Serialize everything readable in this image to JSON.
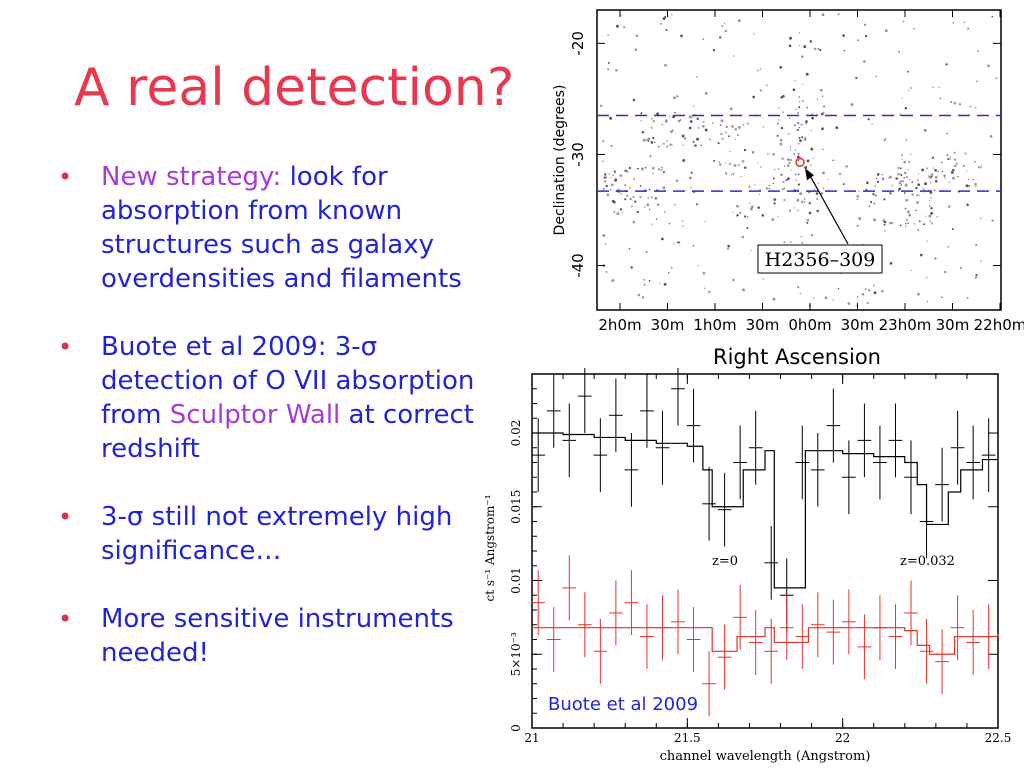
{
  "slide": {
    "title": "A real detection?",
    "bullets": [
      {
        "parts": [
          {
            "text": "New strategy: ",
            "highlight": true
          },
          {
            "text": "look for absorption from known structures such as galaxy overdensities and filaments",
            "highlight": false
          }
        ]
      },
      {
        "parts": [
          {
            "text": "Buote et al 2009: 3-σ detection of O VII absorption from ",
            "highlight": false
          },
          {
            "text": "Sculptor Wall",
            "highlight": true
          },
          {
            "text": " at correct redshift",
            "highlight": false
          }
        ]
      },
      {
        "parts": [
          {
            "text": "3-σ still not extremely high significance…",
            "highlight": false
          }
        ]
      },
      {
        "parts": [
          {
            "text": "More sensitive instruments needed!",
            "highlight": false
          }
        ]
      }
    ],
    "colors": {
      "title": "#e8384f",
      "text": "#2323d6",
      "highlight": "#a63bd6",
      "bullet": "#d5354a"
    }
  },
  "chart_data": [
    {
      "type": "scatter",
      "description": "galaxy sky map",
      "xlabel": "Right Ascension",
      "ylabel": "Declination (degrees)",
      "xticks": [
        "2h0m",
        "30m",
        "1h0m",
        "30m",
        "0h0m",
        "30m",
        "23h0m",
        "30m",
        "22h0m"
      ],
      "yticks": [
        -20,
        -30,
        -40
      ],
      "ylim": [
        -44,
        -17
      ],
      "band_dec": [
        -26.5,
        -33.3
      ],
      "annotation": "H2356–309",
      "target": {
        "ra_hours": 23.98,
        "dec": -30.7
      }
    },
    {
      "type": "line",
      "xlabel": "channel wavelength (Angstrom)",
      "ylabel": "ct s⁻¹ Angstrom⁻¹",
      "xlim": [
        21.0,
        22.5
      ],
      "ylim": [
        0,
        0.024
      ],
      "xticks": [
        21,
        21.5,
        22,
        22.5
      ],
      "yticks": [
        {
          "value": 0,
          "label": "0"
        },
        {
          "value": 0.005,
          "label": "5×10⁻³"
        },
        {
          "value": 0.01,
          "label": "0.01"
        },
        {
          "value": 0.015,
          "label": "0.015"
        },
        {
          "value": 0.02,
          "label": "0.02"
        }
      ],
      "annotations": [
        {
          "text": "z=0",
          "x": 21.6,
          "y": 0.0104
        },
        {
          "text": "z=0.032",
          "x": 22.18,
          "y": 0.0104
        },
        {
          "text": "Buote et al 2009"
        }
      ],
      "series": [
        {
          "color": "#000000",
          "model": [
            [
              21.0,
              0.02
            ],
            [
              21.1,
              0.0199
            ],
            [
              21.2,
              0.0197
            ],
            [
              21.3,
              0.0195
            ],
            [
              21.4,
              0.0193
            ],
            [
              21.5,
              0.0191
            ],
            [
              21.55,
              0.0175
            ],
            [
              21.58,
              0.015
            ],
            [
              21.65,
              0.015
            ],
            [
              21.68,
              0.0175
            ],
            [
              21.75,
              0.0188
            ],
            [
              21.78,
              0.0095
            ],
            [
              21.85,
              0.0095
            ],
            [
              21.88,
              0.0188
            ],
            [
              22.0,
              0.0186
            ],
            [
              22.1,
              0.0184
            ],
            [
              22.2,
              0.018
            ],
            [
              22.24,
              0.0165
            ],
            [
              22.27,
              0.0138
            ],
            [
              22.32,
              0.0138
            ],
            [
              22.34,
              0.016
            ],
            [
              22.38,
              0.0175
            ],
            [
              22.45,
              0.0182
            ],
            [
              22.5,
              0.0182
            ]
          ],
          "points": [
            [
              21.02,
              0.0185
            ],
            [
              21.07,
              0.0215
            ],
            [
              21.12,
              0.0195
            ],
            [
              21.17,
              0.0225
            ],
            [
              21.22,
              0.0185
            ],
            [
              21.27,
              0.0212
            ],
            [
              21.32,
              0.0175
            ],
            [
              21.37,
              0.0215
            ],
            [
              21.42,
              0.019
            ],
            [
              21.47,
              0.023
            ],
            [
              21.52,
              0.0205
            ],
            [
              21.57,
              0.0152
            ],
            [
              21.62,
              0.0148
            ],
            [
              21.67,
              0.018
            ],
            [
              21.72,
              0.019
            ],
            [
              21.77,
              0.0112
            ],
            [
              21.82,
              0.009
            ],
            [
              21.87,
              0.018
            ],
            [
              21.92,
              0.0175
            ],
            [
              21.97,
              0.0205
            ],
            [
              22.02,
              0.017
            ],
            [
              22.07,
              0.0195
            ],
            [
              22.12,
              0.018
            ],
            [
              22.17,
              0.0195
            ],
            [
              22.22,
              0.017
            ],
            [
              22.27,
              0.014
            ],
            [
              22.32,
              0.0165
            ],
            [
              22.37,
              0.019
            ],
            [
              22.42,
              0.018
            ],
            [
              22.47,
              0.0185
            ]
          ],
          "err": 0.0025
        },
        {
          "color": "#e8322c",
          "model": [
            [
              21.0,
              0.0068
            ],
            [
              21.2,
              0.0068
            ],
            [
              21.4,
              0.0068
            ],
            [
              21.55,
              0.0068
            ],
            [
              21.58,
              0.0052
            ],
            [
              21.63,
              0.0052
            ],
            [
              21.66,
              0.0062
            ],
            [
              21.75,
              0.0068
            ],
            [
              21.78,
              0.0058
            ],
            [
              21.86,
              0.0058
            ],
            [
              21.89,
              0.0068
            ],
            [
              22.2,
              0.0066
            ],
            [
              22.24,
              0.0056
            ],
            [
              22.28,
              0.005
            ],
            [
              22.33,
              0.005
            ],
            [
              22.36,
              0.0062
            ],
            [
              22.5,
              0.0064
            ]
          ],
          "points": [
            [
              21.02,
              0.0085
            ],
            [
              21.07,
              0.006
            ],
            [
              21.12,
              0.0095
            ],
            [
              21.17,
              0.007
            ],
            [
              21.22,
              0.0052
            ],
            [
              21.27,
              0.0078
            ],
            [
              21.32,
              0.0085
            ],
            [
              21.37,
              0.0062
            ],
            [
              21.42,
              0.0068
            ],
            [
              21.47,
              0.0072
            ],
            [
              21.52,
              0.006
            ],
            [
              21.57,
              0.003
            ],
            [
              21.62,
              0.0048
            ],
            [
              21.67,
              0.0075
            ],
            [
              21.72,
              0.0058
            ],
            [
              21.77,
              0.0052
            ],
            [
              21.82,
              0.0068
            ],
            [
              21.87,
              0.0062
            ],
            [
              21.92,
              0.007
            ],
            [
              21.97,
              0.0065
            ],
            [
              22.02,
              0.0072
            ],
            [
              22.07,
              0.0055
            ],
            [
              22.12,
              0.0068
            ],
            [
              22.17,
              0.0062
            ],
            [
              22.22,
              0.0078
            ],
            [
              22.27,
              0.0052
            ],
            [
              22.32,
              0.0045
            ],
            [
              22.37,
              0.0068
            ],
            [
              22.42,
              0.0058
            ],
            [
              22.47,
              0.0062
            ]
          ],
          "err": 0.0022
        }
      ]
    }
  ]
}
